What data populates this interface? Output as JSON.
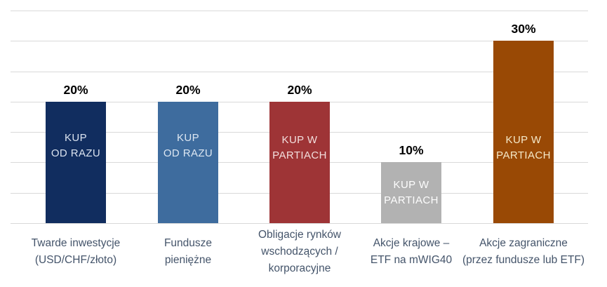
{
  "chart_data": {
    "type": "bar",
    "title": "",
    "xlabel": "",
    "ylabel": "",
    "legend": "none",
    "grid": "on",
    "ylim": [
      0,
      35
    ],
    "grid_step_percent": 5,
    "background_color": "#ffffff",
    "gridline_color": "#d9d9d9",
    "value_label_color": "#000000",
    "category_label_color": "#44546a",
    "categories": [
      "Twarde inwestycje (USD/CHF/złoto)",
      "Fundusze pieniężne",
      "Obligacje rynków wschodzących / korporacyjne",
      "Akcje krajowe – ETF na mWIG40",
      "Akcje zagraniczne (przez fundusze lub ETF)"
    ],
    "category_lines": [
      [
        "Twarde inwestycje",
        "(USD/CHF/złoto)"
      ],
      [
        "Fundusze",
        "pieniężne"
      ],
      [
        "Obligacje rynków",
        "wschodzących /",
        "korporacyjne"
      ],
      [
        "Akcje krajowe –",
        "ETF na mWIG40"
      ],
      [
        "Akcje zagraniczne",
        "(przez fundusze lub ETF)"
      ]
    ],
    "values": [
      20,
      20,
      20,
      10,
      30
    ],
    "value_labels": [
      "20%",
      "20%",
      "20%",
      "10%",
      "30%"
    ],
    "bar_labels": [
      "KUP OD RAZU",
      "KUP OD RAZU",
      "KUP W PARTIACH",
      "KUP W PARTIACH",
      "KUP W PARTIACH"
    ],
    "bar_label_lines": [
      [
        "KUP",
        "OD RAZU"
      ],
      [
        "KUP",
        "OD RAZU"
      ],
      [
        "KUP W",
        "PARTIACH"
      ],
      [
        "KUP W",
        "PARTIACH"
      ],
      [
        "KUP W",
        "PARTIACH"
      ]
    ],
    "bar_colors": [
      "#112d5f",
      "#3e6c9e",
      "#9e3436",
      "#b2b2b2",
      "#994905"
    ],
    "bar_label_colors": [
      "#dbe3ef",
      "#dde7f2",
      "#f2dedd",
      "#fdfdfd",
      "#f5e9c9"
    ]
  }
}
